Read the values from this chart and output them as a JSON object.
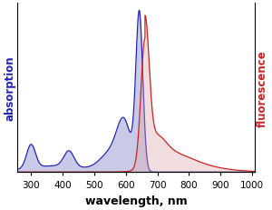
{
  "title": "",
  "xlabel": "wavelength, nm",
  "ylabel_left": "absorption",
  "ylabel_right": "fluorescence",
  "xlim": [
    255,
    1010
  ],
  "ylim": [
    0,
    1.08
  ],
  "xticks": [
    300,
    400,
    500,
    600,
    700,
    800,
    900,
    1000
  ],
  "absorption_color": "#2222bb",
  "absorption_fill_color": "#8888cc",
  "emission_color": "#cc2222",
  "emission_fill_color": "#ddaaaa",
  "background_color": "#ffffff",
  "xlabel_fontsize": 9,
  "ylabel_fontsize": 8.5
}
